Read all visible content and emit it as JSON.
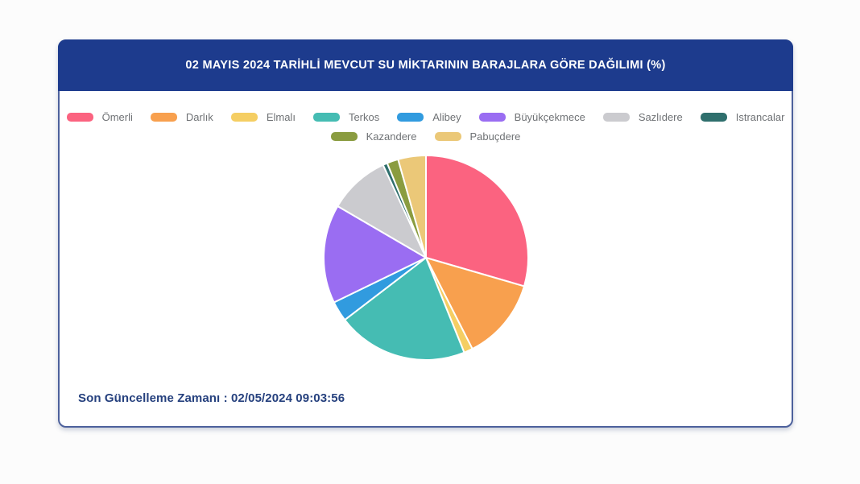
{
  "card": {
    "title": "02 MAYIS 2024 TARİHLİ MEVCUT SU MİKTARININ BARAJLARA GÖRE DAĞILIMI (%)",
    "header_bg": "#1d3b8d",
    "footer_label": "Son Güncelleme Zamanı :",
    "footer_value": "02/05/2024 09:03:56"
  },
  "chart_data": {
    "type": "pie",
    "title": "02 MAYIS 2024 TARİHLİ MEVCUT SU MİKTARININ BARAJLARA GÖRE DAĞILIMI (%)",
    "unit": "%",
    "start_angle_deg": 0,
    "direction": "clockwise",
    "legend_position": "top",
    "legend_rows": [
      [
        "Ömerli",
        "Darlık",
        "Elmalı",
        "Terkos",
        "Alibey",
        "Büyükçekmece",
        "Sazlıdere",
        "Istrancalar"
      ],
      [
        "Kazandere",
        "Pabuçdere"
      ]
    ],
    "series": [
      {
        "name": "Ömerli",
        "value": 29.5,
        "color": "#fb6380"
      },
      {
        "name": "Darlık",
        "value": 13.0,
        "color": "#f8a04e"
      },
      {
        "name": "Elmalı",
        "value": 1.4,
        "color": "#f5ce63"
      },
      {
        "name": "Terkos",
        "value": 20.7,
        "color": "#45bcb3"
      },
      {
        "name": "Alibey",
        "value": 3.2,
        "color": "#319bdf"
      },
      {
        "name": "Büyükçekmece",
        "value": 15.6,
        "color": "#9a6df2"
      },
      {
        "name": "Sazlıdere",
        "value": 9.7,
        "color": "#cbcbcf"
      },
      {
        "name": "Istrancalar",
        "value": 0.7,
        "color": "#2f6f6d"
      },
      {
        "name": "Kazandere",
        "value": 1.8,
        "color": "#8a9c40"
      },
      {
        "name": "Pabuçdere",
        "value": 4.4,
        "color": "#ebc878"
      }
    ]
  }
}
